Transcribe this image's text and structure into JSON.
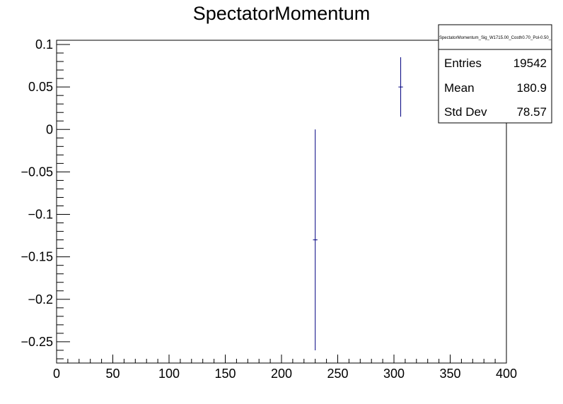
{
  "chart_data": {
    "type": "scatter",
    "title": "SpectatorMomentum",
    "xlabel": "",
    "ylabel": "",
    "xlim": [
      0,
      400
    ],
    "ylim": [
      -0.275,
      0.105
    ],
    "x_ticks": [
      0,
      50,
      100,
      150,
      200,
      250,
      300,
      350,
      400
    ],
    "x_tick_labels": [
      "0",
      "50",
      "100",
      "150",
      "200",
      "250",
      "300",
      "350",
      "400"
    ],
    "y_ticks": [
      -0.25,
      -0.2,
      -0.15,
      -0.1,
      -0.05,
      0,
      0.05,
      0.1
    ],
    "y_tick_labels": [
      "−0.25",
      "−0.2",
      "−0.15",
      "−0.1",
      "−0.05",
      "0",
      "0.05",
      "0.1"
    ],
    "grid": false,
    "series": [
      {
        "color": "#000080",
        "points": [
          {
            "x": 230,
            "y": -0.13,
            "y_low": -0.26,
            "y_high": 0.0,
            "x_low": 228,
            "x_high": 232
          },
          {
            "x": 306,
            "y": 0.05,
            "y_low": 0.015,
            "y_high": 0.085,
            "x_low": 304,
            "x_high": 308
          }
        ]
      }
    ],
    "stats_box": {
      "name": "SpectatorMomentum_Sig_W1715.00_Costh0.70_Pol-0.50_",
      "rows": [
        {
          "label": "Entries",
          "value": "19542"
        },
        {
          "label": "Mean",
          "value": "180.9"
        },
        {
          "label": "Std Dev",
          "value": "78.57"
        }
      ]
    }
  }
}
